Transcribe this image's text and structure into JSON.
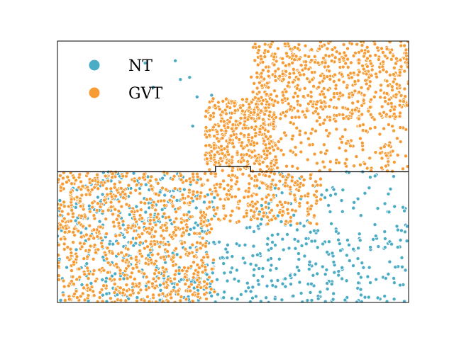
{
  "chart_data": {
    "type": "scatter",
    "title": "",
    "xlabel": "",
    "ylabel": "",
    "axes_visible": false,
    "grid": false,
    "legend": {
      "placement": "top-left",
      "entries": [
        {
          "label": "NT",
          "color": "#4bacc6"
        },
        {
          "label": "GVT",
          "color": "#f79b34"
        }
      ]
    },
    "xlim": [
      0,
      1
    ],
    "ylim": [
      0,
      1
    ],
    "reference_boundary": {
      "description_level": "step line",
      "x": [
        0.0,
        0.45,
        0.45,
        0.55,
        0.55,
        1.0
      ],
      "y": [
        0.5,
        0.5,
        0.52,
        0.52,
        0.5,
        0.5
      ]
    },
    "series": [
      {
        "name": "NT",
        "color": "#4bacc6",
        "regions": [
          {
            "count": 380,
            "x": [
              0.0,
              0.45
            ],
            "y": [
              0.0,
              0.5
            ]
          },
          {
            "count": 260,
            "x": [
              0.45,
              1.0
            ],
            "y": [
              0.0,
              0.3
            ]
          },
          {
            "count": 70,
            "x": [
              0.55,
              1.0
            ],
            "y": [
              0.3,
              0.5
            ]
          },
          {
            "count": 10,
            "x": [
              0.2,
              0.5
            ],
            "y": [
              0.65,
              0.95
            ]
          }
        ]
      },
      {
        "name": "GVT",
        "color": "#f79b34",
        "regions": [
          {
            "count": 900,
            "x": [
              0.0,
              0.45
            ],
            "y": [
              0.0,
              0.5
            ]
          },
          {
            "count": 220,
            "x": [
              0.45,
              0.75
            ],
            "y": [
              0.3,
              0.5
            ]
          },
          {
            "count": 400,
            "x": [
              0.42,
              0.62
            ],
            "y": [
              0.5,
              0.78
            ]
          },
          {
            "count": 650,
            "x": [
              0.55,
              1.0
            ],
            "y": [
              0.7,
              1.0
            ]
          },
          {
            "count": 150,
            "x": [
              0.6,
              1.0
            ],
            "y": [
              0.5,
              0.7
            ]
          }
        ]
      }
    ]
  }
}
